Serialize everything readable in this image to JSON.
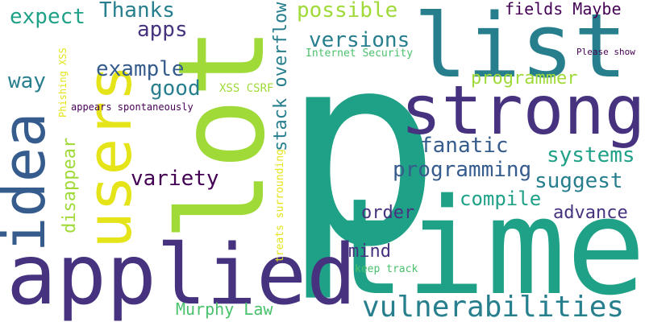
{
  "palette": {
    "dark_purple": "#440154",
    "indigo": "#46327e",
    "blue": "#365c8d",
    "teal": "#277f8e",
    "green_teal": "#1fa187",
    "green": "#4ac16d",
    "lime": "#a0da39",
    "yellow": "#e5e419"
  },
  "words": [
    {
      "text": "p",
      "color": "#1fa187"
    },
    {
      "text": "time",
      "color": "#1fa187"
    },
    {
      "text": "lot",
      "color": "#a0da39"
    },
    {
      "text": "applied",
      "color": "#46327e"
    },
    {
      "text": "list",
      "color": "#277f8e"
    },
    {
      "text": "strong",
      "color": "#46327e"
    },
    {
      "text": "users",
      "color": "#e5e419"
    },
    {
      "text": "idea",
      "color": "#365c8d"
    },
    {
      "text": "vulnerabilities",
      "color": "#277f8e"
    },
    {
      "text": "possible",
      "color": "#a0da39"
    },
    {
      "text": "versions",
      "color": "#277f8e"
    },
    {
      "text": "Thanks",
      "color": "#277f8e"
    },
    {
      "text": "expect",
      "color": "#1fa187"
    },
    {
      "text": "apps",
      "color": "#46327e"
    },
    {
      "text": "example",
      "color": "#365c8d"
    },
    {
      "text": "good",
      "color": "#277f8e"
    },
    {
      "text": "way",
      "color": "#277f8e"
    },
    {
      "text": "programmer",
      "color": "#a0da39"
    },
    {
      "text": "fields Maybe",
      "color": "#440154"
    },
    {
      "text": "stack overflow",
      "color": "#277f8e"
    },
    {
      "text": "fanatic",
      "color": "#365c8d"
    },
    {
      "text": "systems",
      "color": "#1fa187"
    },
    {
      "text": "programming",
      "color": "#365c8d"
    },
    {
      "text": "suggest",
      "color": "#277f8e"
    },
    {
      "text": "variety",
      "color": "#440154"
    },
    {
      "text": "compile",
      "color": "#1fa187"
    },
    {
      "text": "order",
      "color": "#46327e"
    },
    {
      "text": "advance",
      "color": "#46327e"
    },
    {
      "text": "disappear",
      "color": "#a0da39"
    },
    {
      "text": "mind",
      "color": "#46327e"
    },
    {
      "text": "Murphy Law",
      "color": "#4ac16d"
    },
    {
      "text": "Internet Security",
      "color": "#4ac16d"
    },
    {
      "text": "XSS CSRF",
      "color": "#a0da39"
    },
    {
      "text": "Phishing XSS",
      "color": "#e5e419"
    },
    {
      "text": "appears spontaneously",
      "color": "#440154"
    },
    {
      "text": "treats surrounding",
      "color": "#e5e419"
    },
    {
      "text": "keep track",
      "color": "#4ac16d"
    },
    {
      "text": "Please show",
      "color": "#440154"
    }
  ]
}
